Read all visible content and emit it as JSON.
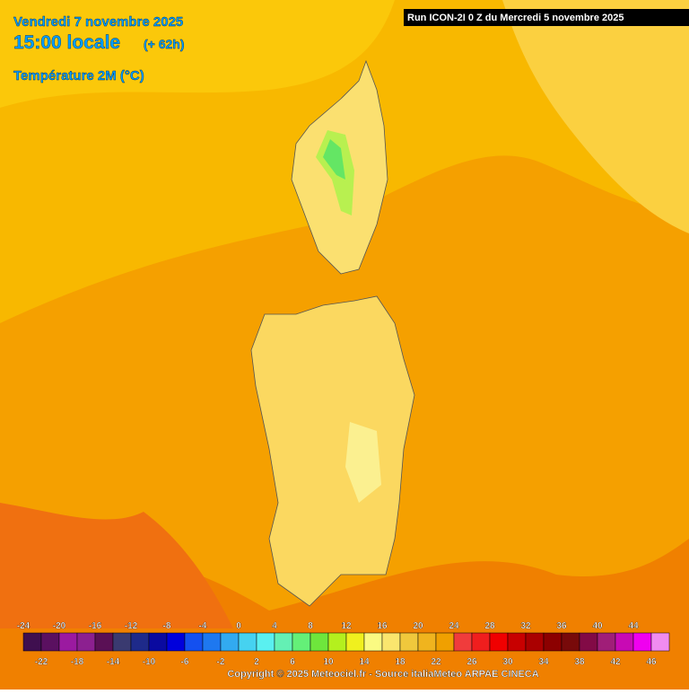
{
  "header": {
    "date": "Vendredi 7 novembre 2025",
    "time": "15:00 locale",
    "lead": "(+ 62h)",
    "variable": "Température 2M (°C)"
  },
  "run_info": "Run ICON-2I 0 Z du Mercredi 5 novembre 2025",
  "legend": {
    "labels": [
      -24,
      -22,
      -20,
      -18,
      -16,
      -14,
      -12,
      -10,
      -8,
      -6,
      -4,
      -2,
      0,
      2,
      4,
      6,
      8,
      10,
      12,
      14,
      16,
      18,
      20,
      22,
      24,
      26,
      28,
      30,
      32,
      34,
      36,
      38,
      40,
      42,
      44,
      46
    ],
    "colors": [
      "#3f0f4f",
      "#5a1060",
      "#9b1aa0",
      "#8c2090",
      "#5a1055",
      "#3a3a70",
      "#1e2a8a",
      "#0a0aa0",
      "#0000dc",
      "#1450f0",
      "#1e78f0",
      "#32aaf0",
      "#46d2f0",
      "#5af0f0",
      "#64f0b4",
      "#64f078",
      "#6ee63c",
      "#b4f01e",
      "#f0f01e",
      "#fafa82",
      "#fae66e",
      "#f0c83c",
      "#f0b41e",
      "#f0a000",
      "#f03c3c",
      "#f01e1e",
      "#f00000",
      "#c80000",
      "#aa0000",
      "#8c0000",
      "#780a0a",
      "#820a46",
      "#a01e78",
      "#c80ab4",
      "#f000f0",
      "#f08cf0"
    ]
  },
  "copyright": "Copyright © 2025 Meteociel.fr - Source italiaMeteo ARPAE CINECA"
}
